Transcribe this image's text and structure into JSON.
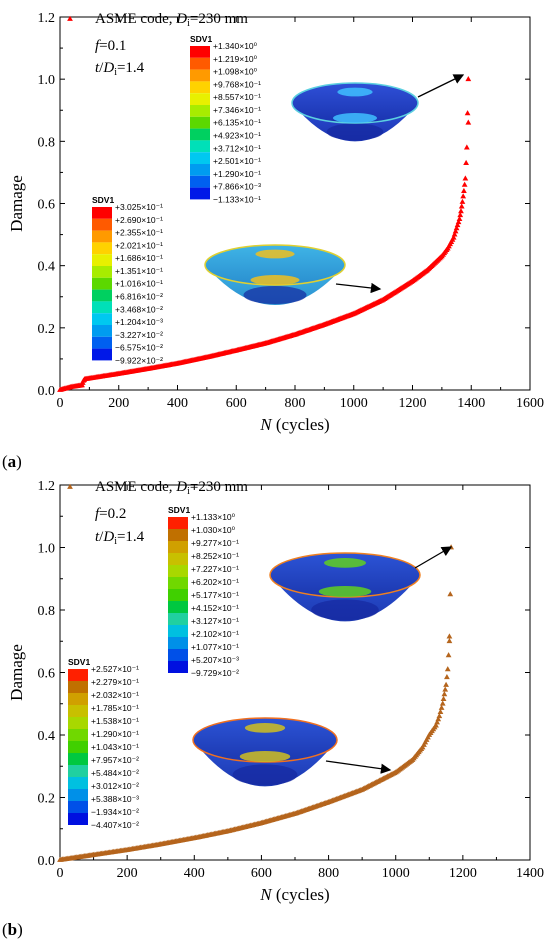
{
  "panels": [
    {
      "label_letter": "a"
    },
    {
      "label_letter": "b"
    }
  ],
  "chart_data": [
    {
      "type": "scatter",
      "xlabel": "N (cycles)",
      "ylabel": "Damage",
      "xlim": [
        0,
        1600
      ],
      "ylim": [
        0,
        1.2
      ],
      "xticks": [
        0,
        200,
        400,
        600,
        800,
        1000,
        1200,
        1400,
        1600
      ],
      "yticks": [
        0.0,
        0.2,
        0.4,
        0.6,
        0.8,
        1.0,
        1.2
      ],
      "legend_location": "top-left",
      "series": [
        {
          "name": "ASME code, Di=230 mm",
          "color": "#ff0000",
          "marker": "triangle",
          "x": [
            0,
            40,
            75,
            80,
            85,
            100,
            200,
            300,
            400,
            500,
            600,
            700,
            800,
            900,
            1000,
            1100,
            1200,
            1250,
            1300,
            1320,
            1340,
            1350,
            1360,
            1365,
            1370,
            1375,
            1380,
            1385,
            1390
          ],
          "y": [
            0.0,
            0.01,
            0.015,
            0.03,
            0.035,
            0.037,
            0.052,
            0.068,
            0.085,
            0.105,
            0.127,
            0.15,
            0.178,
            0.21,
            0.245,
            0.29,
            0.35,
            0.385,
            0.43,
            0.455,
            0.49,
            0.52,
            0.55,
            0.575,
            0.605,
            0.64,
            0.68,
            0.78,
            1.0
          ]
        }
      ],
      "annotations": [
        "f=0.1",
        "t/Di=1.4"
      ],
      "extra_points": [
        {
          "x": 1390,
          "y": 0.86
        }
      ],
      "contour_legends": [
        {
          "title": "SDV1",
          "colors": [
            "#ff0000",
            "#ff5a00",
            "#ff9a00",
            "#ffd200",
            "#e8f000",
            "#a8ec00",
            "#5cd800",
            "#00d060",
            "#00e0b8",
            "#00c8f0",
            "#009cf0",
            "#0060f0",
            "#0018e8"
          ],
          "values": [
            "+1.340×10⁰",
            "+1.219×10⁰",
            "+1.098×10⁰",
            "+9.768×10⁻¹",
            "+8.557×10⁻¹",
            "+7.346×10⁻¹",
            "+6.135×10⁻¹",
            "+4.923×10⁻¹",
            "+3.712×10⁻¹",
            "+2.501×10⁻¹",
            "+1.290×10⁻¹",
            "+7.866×10⁻³",
            "−1.133×10⁻¹"
          ]
        },
        {
          "title": "SDV1",
          "colors": [
            "#ff0000",
            "#ff5a00",
            "#ff9a00",
            "#ffd200",
            "#e8f000",
            "#a8ec00",
            "#5cd800",
            "#00d060",
            "#00e0b8",
            "#00c8f0",
            "#009cf0",
            "#0060f0",
            "#0018e8"
          ],
          "values": [
            "+3.025×10⁻¹",
            "+2.690×10⁻¹",
            "+2.355×10⁻¹",
            "+2.021×10⁻¹",
            "+1.686×10⁻¹",
            "+1.351×10⁻¹",
            "+1.016×10⁻¹",
            "+6.816×10⁻²",
            "+3.468×10⁻²",
            "+1.204×10⁻³",
            "−3.227×10⁻²",
            "−6.575×10⁻²",
            "−9.922×10⁻²"
          ]
        }
      ]
    },
    {
      "type": "scatter",
      "xlabel": "N (cycles)",
      "ylabel": "Damage",
      "xlim": [
        0,
        1400
      ],
      "ylim": [
        0,
        1.2
      ],
      "xticks": [
        0,
        200,
        400,
        600,
        800,
        1000,
        1200,
        1400
      ],
      "yticks": [
        0.0,
        0.2,
        0.4,
        0.6,
        0.8,
        1.0,
        1.2
      ],
      "legend_location": "top-left",
      "series": [
        {
          "name": "ASME code, Di=230 mm",
          "color": "#b5651d",
          "marker": "triangle",
          "x": [
            0,
            50,
            100,
            200,
            300,
            400,
            500,
            600,
            700,
            800,
            900,
            1000,
            1050,
            1080,
            1100,
            1120,
            1130,
            1140,
            1145,
            1150,
            1155,
            1160,
            1165
          ],
          "y": [
            0.0,
            0.008,
            0.016,
            0.032,
            0.05,
            0.07,
            0.092,
            0.118,
            0.148,
            0.185,
            0.225,
            0.28,
            0.32,
            0.36,
            0.4,
            0.43,
            0.46,
            0.5,
            0.53,
            0.56,
            0.61,
            0.7,
            1.0
          ]
        }
      ],
      "annotations": [
        "f=0.2",
        "t/Di=1.4"
      ],
      "extra_points": [
        {
          "x": 1160,
          "y": 0.715
        }
      ],
      "contour_legends": [
        {
          "title": "SDV1",
          "colors": [
            "#ff2000",
            "#c07000",
            "#d0a000",
            "#c8c000",
            "#a8d800",
            "#70d800",
            "#40d000",
            "#00c840",
            "#20d0a0",
            "#00c0e0",
            "#0090e8",
            "#0050e8",
            "#0010e0"
          ],
          "values": [
            "+1.133×10⁰",
            "+1.030×10⁰",
            "+9.277×10⁻¹",
            "+8.252×10⁻¹",
            "+7.227×10⁻¹",
            "+6.202×10⁻¹",
            "+5.177×10⁻¹",
            "+4.152×10⁻¹",
            "+3.127×10⁻¹",
            "+2.102×10⁻¹",
            "+1.077×10⁻¹",
            "+5.207×10⁻³",
            "−9.729×10⁻²"
          ]
        },
        {
          "title": "SDV1",
          "colors": [
            "#ff2000",
            "#c07000",
            "#d0a000",
            "#c8c000",
            "#a8d800",
            "#70d800",
            "#40d000",
            "#00c840",
            "#20d0a0",
            "#00c0e0",
            "#0090e8",
            "#0050e8",
            "#0010e0"
          ],
          "values": [
            "+2.527×10⁻¹",
            "+2.279×10⁻¹",
            "+2.032×10⁻¹",
            "+1.785×10⁻¹",
            "+1.538×10⁻¹",
            "+1.290×10⁻¹",
            "+1.043×10⁻¹",
            "+7.957×10⁻²",
            "+5.484×10⁻²",
            "+3.012×10⁻²",
            "+5.388×10⁻³",
            "−1.934×10⁻²",
            "−4.407×10⁻²"
          ]
        }
      ]
    }
  ]
}
